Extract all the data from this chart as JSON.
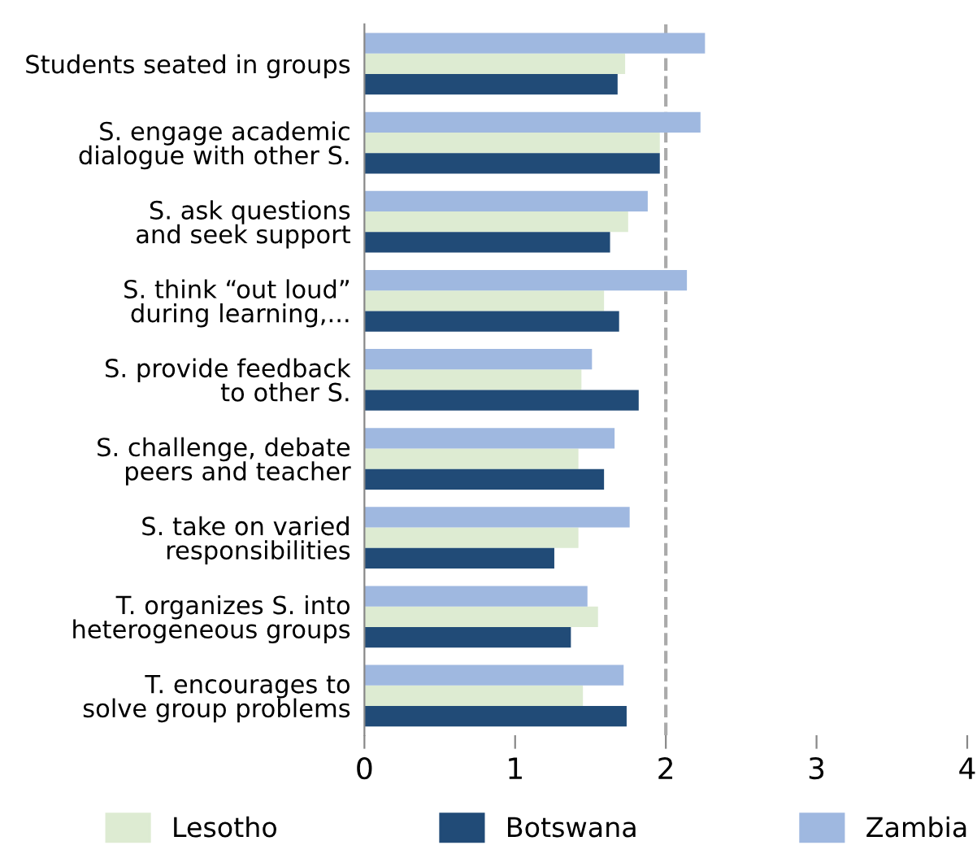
{
  "chart_data": {
    "type": "bar",
    "orientation": "horizontal",
    "categories": [
      "Students seated in groups",
      "S. engage academic\ndialogue with other S.",
      "S. ask questions\nand seek support",
      "S. think “out loud”\nduring learning,...",
      "S. provide feedback\nto other S.",
      "S. challenge, debate\npeers and teacher",
      "S. take on varied\nresponsibilities",
      "T. organizes S. into\nheterogeneous groups",
      "T. encourages to\nsolve group problems"
    ],
    "series": [
      {
        "name": "Lesotho",
        "color": "#ddebd2",
        "values": [
          1.73,
          1.96,
          1.75,
          1.59,
          1.44,
          1.42,
          1.42,
          1.55,
          1.45
        ]
      },
      {
        "name": "Botswana",
        "color": "#214b77",
        "values": [
          1.68,
          1.96,
          1.63,
          1.69,
          1.82,
          1.59,
          1.26,
          1.37,
          1.74
        ]
      },
      {
        "name": "Zambia",
        "color": "#9fb8e0",
        "values": [
          2.26,
          2.23,
          1.88,
          2.14,
          1.51,
          1.66,
          1.76,
          1.48,
          1.72
        ]
      }
    ],
    "xlim": [
      0,
      4
    ],
    "xticks": [
      0,
      1,
      2,
      3,
      4
    ],
    "ref_lines": [
      {
        "axis": "x",
        "value": 2,
        "color": "#aaaaaa",
        "line_style": "dashed"
      }
    ],
    "grid": false,
    "legend": "bottom"
  }
}
